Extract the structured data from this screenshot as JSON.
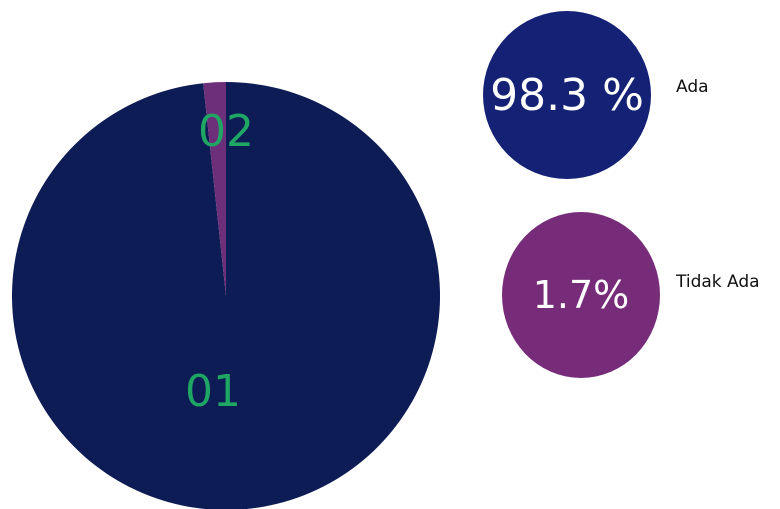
{
  "chart_data": {
    "type": "pie",
    "slices": [
      {
        "label": "01",
        "name": "Ada",
        "value": 98.3,
        "value_text": "98.3 %",
        "color": "#0d1c54"
      },
      {
        "label": "02",
        "name": "Tidak Ada",
        "value": 1.7,
        "value_text": "1.7%",
        "color": "#6e2f7a"
      }
    ],
    "legend_circle_colors": [
      "#142174",
      "#772c7a"
    ],
    "slice_label_color": "#1fa564",
    "legend_placement": "right"
  }
}
